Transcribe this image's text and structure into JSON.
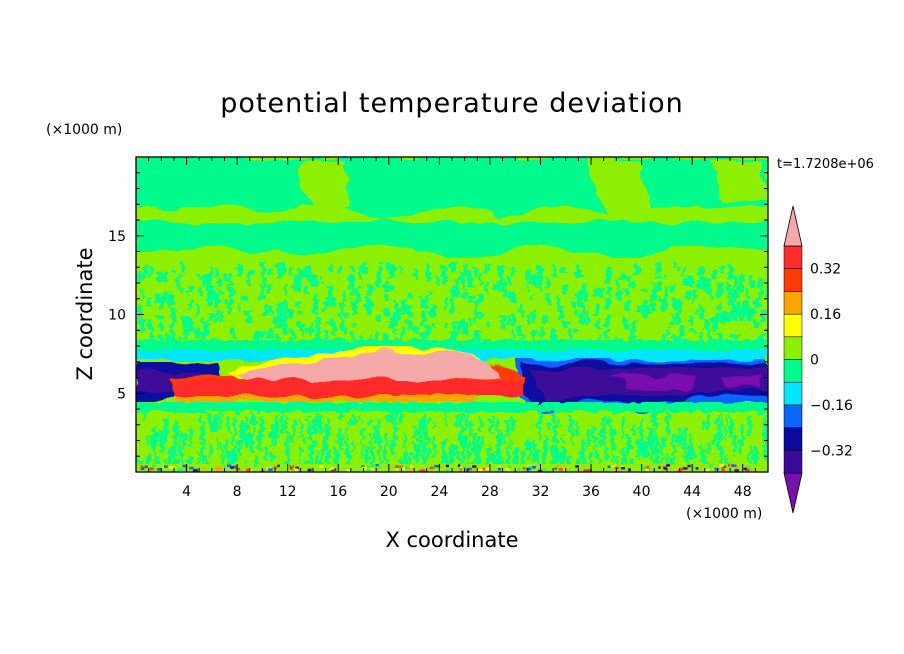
{
  "chart_data": {
    "type": "heatmap",
    "title": "potential temperature deviation",
    "xlabel": "X coordinate",
    "ylabel": "Z coordinate",
    "x_unit_label": "(×1000 m)",
    "y_unit_label": "(×1000 m)",
    "time_label": "t=1.7208e+06",
    "xlim": [
      0,
      50
    ],
    "ylim": [
      0,
      20
    ],
    "x_ticks": [
      4,
      8,
      12,
      16,
      20,
      24,
      28,
      32,
      36,
      40,
      44,
      48
    ],
    "x_tick_labels": [
      "4",
      "8",
      "12",
      "16",
      "20",
      "24",
      "28",
      "32",
      "36",
      "40",
      "44",
      "48"
    ],
    "y_ticks": [
      5,
      10,
      15
    ],
    "y_tick_labels": [
      "5",
      "10",
      "15"
    ],
    "colorbar": {
      "levels": [
        -0.4,
        -0.32,
        -0.24,
        -0.16,
        -0.08,
        0,
        0.08,
        0.16,
        0.24,
        0.32,
        0.4
      ],
      "labeled_levels": [
        0.32,
        0.16,
        0,
        -0.16,
        -0.32
      ],
      "labels": [
        "0.32",
        "0.16",
        "0",
        "−0.16",
        "−0.32"
      ],
      "colors": [
        "#7a0fb0",
        "#3c0a9a",
        "#0a0aa0",
        "#0a64ff",
        "#00e6ff",
        "#00fa8c",
        "#8cf000",
        "#ffff00",
        "#ffa500",
        "#ff3c00",
        "#ff2a2a",
        "#f5a8a8"
      ],
      "extend": "both"
    },
    "regions": [
      {
        "name": "upper-green",
        "x": [
          0,
          50
        ],
        "z": [
          13,
          20
        ],
        "value": 0.04
      },
      {
        "name": "upper-teal-band",
        "x": [
          0,
          50
        ],
        "z": [
          15.5,
          20
        ],
        "value": -0.04
      },
      {
        "name": "mid-mixed",
        "x": [
          0,
          50
        ],
        "z": [
          7.5,
          13
        ],
        "value": 0.02
      },
      {
        "name": "warm-core-red",
        "x": [
          3,
          30
        ],
        "z": [
          4.6,
          5.8
        ],
        "value": 0.36
      },
      {
        "name": "warm-core-pink",
        "x": [
          8,
          29
        ],
        "z": [
          5.8,
          7.2
        ],
        "value": 0.44
      },
      {
        "name": "cold-pool-west",
        "x": [
          0,
          3
        ],
        "z": [
          5,
          6.8
        ],
        "value": -0.32
      },
      {
        "name": "cold-pool-east",
        "x": [
          30,
          50
        ],
        "z": [
          4,
          6.8
        ],
        "value": -0.36
      },
      {
        "name": "lower-mixed",
        "x": [
          0,
          50
        ],
        "z": [
          0.3,
          4.3
        ],
        "value": 0.05
      }
    ]
  }
}
